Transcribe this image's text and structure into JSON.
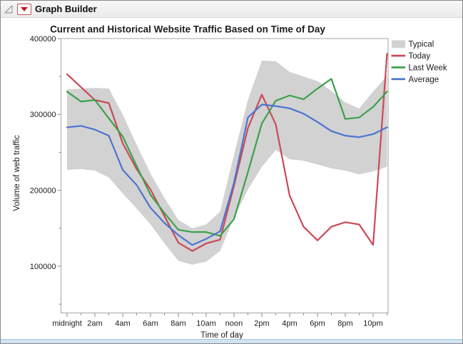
{
  "window": {
    "title": "Graph Builder"
  },
  "chart_data": {
    "type": "line",
    "title": "Current and Historical Website Traffic Based on Time of Day",
    "xlabel": "Time of day",
    "ylabel": "Volume of web traffic",
    "x": [
      0,
      1,
      2,
      3,
      4,
      5,
      6,
      7,
      8,
      9,
      10,
      11,
      12,
      13,
      14,
      15,
      16,
      17,
      18,
      19,
      20,
      21,
      22,
      23
    ],
    "x_tick_labels": [
      "midnight",
      "2am",
      "4am",
      "6am",
      "8am",
      "10am",
      "noon",
      "2pm",
      "4pm",
      "6pm",
      "8pm",
      "10pm"
    ],
    "y_ticks": [
      400000,
      300000,
      200000,
      100000
    ],
    "y_tick_labels": [
      "400000",
      "300000",
      "200000",
      "100000"
    ],
    "y_minor_ticks": [
      350000,
      250000,
      150000,
      50000
    ],
    "ylim": [
      40000,
      400000
    ],
    "grid": false,
    "legend_position": "right",
    "band": {
      "name": "Typical",
      "color": "#d2d2d2",
      "upper": [
        333000,
        334000,
        335000,
        334000,
        300000,
        260000,
        222000,
        190000,
        161000,
        150000,
        155000,
        172000,
        247000,
        319000,
        371000,
        370000,
        356000,
        350000,
        344000,
        331000,
        316000,
        308000,
        330000,
        351000
      ],
      "lower": [
        227000,
        228000,
        226000,
        217000,
        196000,
        176000,
        155000,
        130000,
        107000,
        102000,
        106000,
        120000,
        164000,
        201000,
        231000,
        253000,
        241000,
        239000,
        234000,
        229000,
        226000,
        221000,
        225000,
        231000
      ]
    },
    "series": [
      {
        "name": "Today",
        "color": "#cb4a57",
        "values": [
          353000,
          336000,
          319000,
          315000,
          262000,
          228000,
          201000,
          166000,
          131000,
          120000,
          130000,
          135000,
          206000,
          282000,
          326000,
          287000,
          193000,
          152000,
          134000,
          152000,
          158000,
          155000,
          128000,
          380000
        ]
      },
      {
        "name": "Last Week",
        "color": "#3ba14a",
        "values": [
          330000,
          317000,
          319000,
          295000,
          271000,
          232000,
          194000,
          170000,
          148000,
          145000,
          145000,
          140000,
          162000,
          224000,
          288000,
          318000,
          325000,
          320000,
          334000,
          347000,
          294000,
          296000,
          310000,
          330000
        ]
      },
      {
        "name": "Average",
        "color": "#4d74d2",
        "values": [
          283000,
          285000,
          280000,
          272000,
          227000,
          207000,
          177000,
          157000,
          141000,
          128000,
          136000,
          146000,
          210000,
          296000,
          313000,
          311000,
          308000,
          301000,
          290000,
          278000,
          272000,
          270000,
          274000,
          283000
        ]
      }
    ]
  }
}
